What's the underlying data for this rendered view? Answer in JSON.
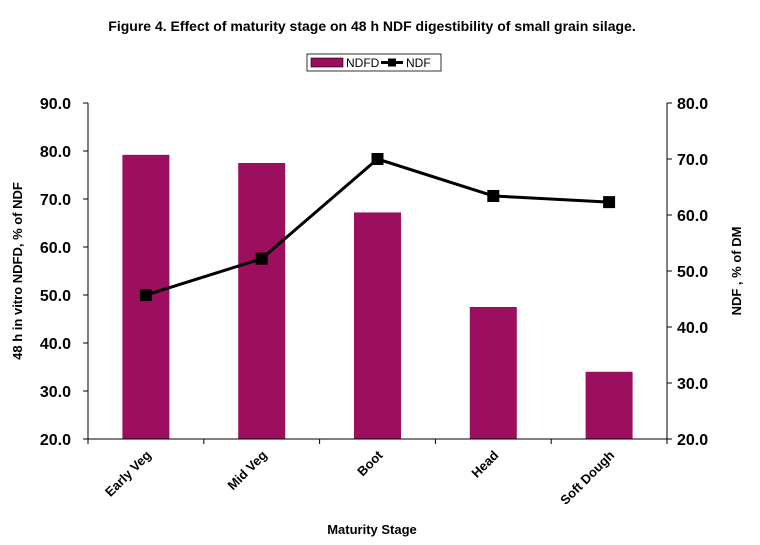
{
  "chart_data": {
    "type": "bar",
    "title": "Figure 4. Effect of maturity stage on 48 h NDF digestibility of small grain silage.",
    "xlabel": "Maturity Stage",
    "ylabel_left": "48 h in vitro NDFD, % of NDF",
    "ylabel_right": "NDF , % of DM",
    "categories": [
      "Early Veg",
      "Mid Veg",
      "Boot",
      "Head",
      "Soft Dough"
    ],
    "ylim_left": [
      20,
      90
    ],
    "yticks_left": [
      "20.0",
      "30.0",
      "40.0",
      "50.0",
      "60.0",
      "70.0",
      "80.0",
      "90.0"
    ],
    "ylim_right": [
      20,
      80
    ],
    "yticks_right": [
      "20.0",
      "30.0",
      "40.0",
      "50.0",
      "60.0",
      "70.0",
      "80.0"
    ],
    "legend_position": "top",
    "series": [
      {
        "name": "NDFD",
        "kind": "bar",
        "axis": "left",
        "color": "#9c0f5f",
        "values": [
          79.2,
          77.5,
          67.2,
          47.5,
          34.0
        ]
      },
      {
        "name": "NDF",
        "kind": "line",
        "axis": "right",
        "color": "#000000",
        "marker": "square",
        "values": [
          45.7,
          52.2,
          70.0,
          63.4,
          62.3
        ]
      }
    ]
  }
}
